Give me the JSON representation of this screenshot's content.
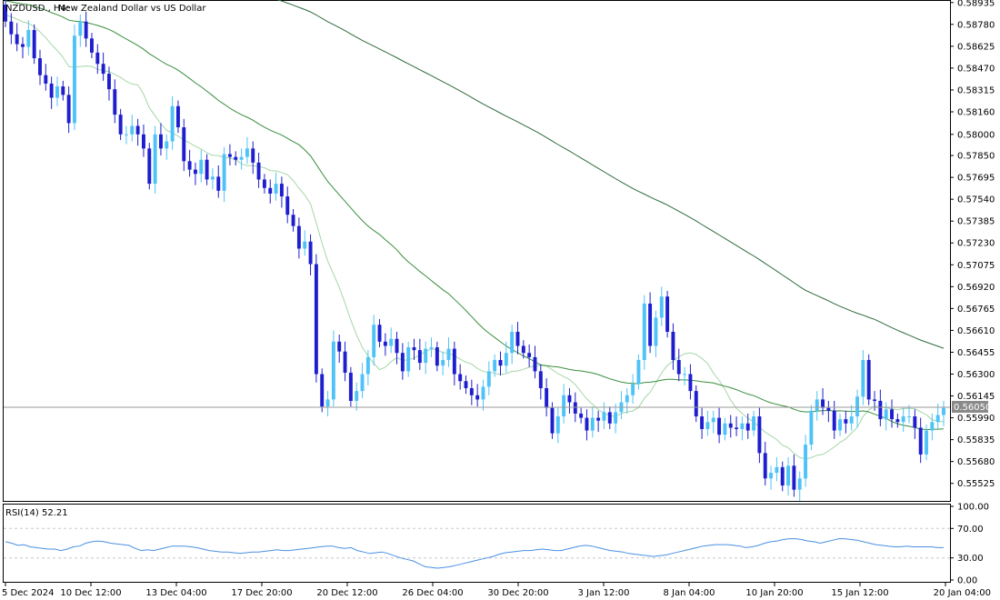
{
  "header": {
    "symbol": "NZDUSD., H4:",
    "description": "New Zealand Dollar vs US Dollar"
  },
  "current_price_label": "0.56050",
  "colors": {
    "bull": "#4fc3f7",
    "bear": "#1e1ecf",
    "ma_fast": "#a5d6a7",
    "ma_mid": "#388e3c",
    "ma_slow": "#2e6b3e",
    "rsi": "#4a90e2",
    "grid": "#c8c8c8",
    "axis": "#000000"
  },
  "chart_data": [
    {
      "type": "candlestick",
      "title": "NZDUSD., H4:  New Zealand Dollar vs US Dollar",
      "y_ticks": [
        "0.58935",
        "0.58780",
        "0.58625",
        "0.58470",
        "0.58315",
        "0.58160",
        "0.58000",
        "0.57850",
        "0.57695",
        "0.57540",
        "0.57385",
        "0.57230",
        "0.57075",
        "0.56920",
        "0.56765",
        "0.56610",
        "0.56455",
        "0.56300",
        "0.56145",
        "0.55990",
        "0.55835",
        "0.55680",
        "0.55525"
      ],
      "ylim": [
        0.5542,
        0.5894
      ],
      "x_ticks": [
        "5 Dec 2024",
        "10 Dec 12:00",
        "13 Dec 04:00",
        "17 Dec 20:00",
        "20 Dec 12:00",
        "26 Dec 04:00",
        "30 Dec 20:00",
        "3 Jan 12:00",
        "8 Jan 04:00",
        "10 Jan 20:00",
        "15 Jan 12:00",
        "20 Jan 04:00"
      ],
      "close": [
        0.588,
        0.5871,
        0.5864,
        0.5862,
        0.5874,
        0.5854,
        0.5842,
        0.5836,
        0.5826,
        0.5834,
        0.5828,
        0.5808,
        0.587,
        0.588,
        0.5868,
        0.5858,
        0.585,
        0.5843,
        0.5832,
        0.5814,
        0.58,
        0.58,
        0.5806,
        0.58,
        0.579,
        0.5765,
        0.58,
        0.579,
        0.5795,
        0.582,
        0.5805,
        0.5781,
        0.5775,
        0.5772,
        0.5782,
        0.5768,
        0.577,
        0.576,
        0.5786,
        0.5784,
        0.5782,
        0.5784,
        0.579,
        0.578,
        0.5768,
        0.5762,
        0.5758,
        0.5765,
        0.5756,
        0.5743,
        0.5735,
        0.5719,
        0.5724,
        0.5708,
        0.563,
        0.5607,
        0.5612,
        0.5653,
        0.5646,
        0.5631,
        0.5611,
        0.5618,
        0.563,
        0.5642,
        0.5665,
        0.5653,
        0.565,
        0.5655,
        0.5645,
        0.5632,
        0.5649,
        0.5647,
        0.5638,
        0.5648,
        0.5649,
        0.5636,
        0.564,
        0.5648,
        0.563,
        0.5625,
        0.562,
        0.5615,
        0.5612,
        0.5621,
        0.5632,
        0.564,
        0.5636,
        0.5645,
        0.566,
        0.565,
        0.5645,
        0.5642,
        0.5632,
        0.562,
        0.5606,
        0.5588,
        0.56,
        0.5615,
        0.561,
        0.5602,
        0.5599,
        0.559,
        0.5599,
        0.5597,
        0.5603,
        0.5595,
        0.5603,
        0.561,
        0.5615,
        0.5623,
        0.564,
        0.568,
        0.565,
        0.567,
        0.5685,
        0.566,
        0.564,
        0.563,
        0.563,
        0.5618,
        0.56,
        0.5591,
        0.5596,
        0.5599,
        0.5587,
        0.5595,
        0.5592,
        0.5591,
        0.5595,
        0.559,
        0.56,
        0.5574,
        0.5556,
        0.556,
        0.5564,
        0.5551,
        0.5565,
        0.5548,
        0.5556,
        0.558,
        0.5604,
        0.5612,
        0.5606,
        0.5604,
        0.559,
        0.5598,
        0.5595,
        0.56,
        0.5614,
        0.564,
        0.5612,
        0.5611,
        0.5598,
        0.5605,
        0.5598,
        0.5596,
        0.56,
        0.56,
        0.5592,
        0.5573,
        0.559,
        0.5596,
        0.5601,
        0.5606
      ],
      "series": [
        {
          "name": "MA fast",
          "role": "ma_fast"
        },
        {
          "name": "MA mid",
          "role": "ma_mid"
        },
        {
          "name": "MA slow",
          "role": "ma_slow"
        }
      ]
    },
    {
      "type": "line",
      "title": "RSI(14) 52.21",
      "label": "RSI(14) 52.21",
      "y_ticks": [
        "100.00",
        "70.00",
        "30.00",
        "0.00"
      ],
      "ylim": [
        0,
        100
      ],
      "levels": [
        70,
        30
      ],
      "values": [
        52,
        50,
        47,
        48,
        45,
        44,
        43,
        42,
        42,
        40,
        42,
        45,
        46,
        50,
        52,
        53,
        52,
        50,
        49,
        48,
        47,
        43,
        40,
        41,
        40,
        42,
        44,
        46,
        46,
        46,
        45,
        44,
        42,
        40,
        39,
        38,
        38,
        37,
        36,
        37,
        38,
        38,
        39,
        40,
        41,
        40,
        40,
        41,
        42,
        43,
        44,
        45,
        46,
        46,
        44,
        43,
        44,
        40,
        38,
        36,
        37,
        38,
        36,
        33,
        30,
        28,
        26,
        22,
        18,
        17,
        16,
        17,
        18,
        20,
        22,
        24,
        26,
        28,
        30,
        32,
        35,
        37,
        38,
        39,
        40,
        40,
        41,
        42,
        41,
        40,
        40,
        42,
        44,
        46,
        47,
        46,
        44,
        42,
        40,
        39,
        38,
        36,
        35,
        34,
        33,
        32,
        33,
        34,
        36,
        38,
        40,
        42,
        44,
        46,
        47,
        48,
        48,
        48,
        47,
        46,
        44,
        45,
        47,
        50,
        52,
        53,
        55,
        56,
        56,
        55,
        53,
        52,
        50,
        52,
        54,
        56,
        56,
        55,
        54,
        52,
        50,
        48,
        47,
        46,
        45,
        45,
        46,
        45,
        45,
        45,
        45,
        44,
        44
      ]
    }
  ]
}
